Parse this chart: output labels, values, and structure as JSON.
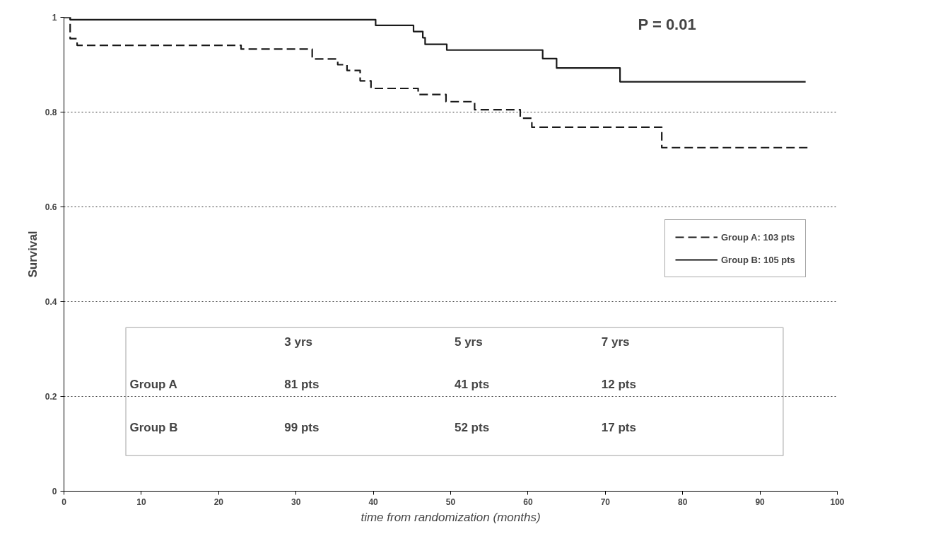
{
  "chart_data": {
    "type": "step",
    "xlabel": "time from randomization (months)",
    "ylabel": "Survival",
    "xlim": [
      0,
      100
    ],
    "ylim": [
      0,
      1
    ],
    "xticks": [
      0,
      10,
      20,
      30,
      40,
      50,
      60,
      70,
      80,
      90,
      100
    ],
    "yticks": [
      0,
      {
        "value": 0.2,
        "label": "0.2"
      },
      {
        "value": 0.4,
        "label": "0.4"
      },
      {
        "value": 0.6,
        "label": "0.6"
      },
      {
        "value": 0.8,
        "label": "0.8"
      },
      1
    ],
    "grid": "y",
    "legend": "right",
    "series": [
      {
        "name": "Group A: 103 pts",
        "color": "#1a1a1a",
        "line_style": "dashed",
        "x": [
          0,
          0.8,
          1.7,
          22.9,
          32.1,
          35.4,
          36.6,
          38.3,
          39.7,
          45.8,
          49.4,
          53.1,
          59.0,
          60.5,
          77.3,
          96.4
        ],
        "values": [
          1,
          0.955,
          0.941,
          0.933,
          0.912,
          0.9,
          0.888,
          0.866,
          0.85,
          0.837,
          0.822,
          0.805,
          0.787,
          0.768,
          0.725,
          0.725
        ]
      },
      {
        "name": "Group B: 105 pts",
        "color": "#1a1a1a",
        "line_style": "solid",
        "x": [
          0,
          0.8,
          40.3,
          45.2,
          46.4,
          46.7,
          49.5,
          61.9,
          63.7,
          71.9,
          95.9
        ],
        "values": [
          1,
          0.995,
          0.983,
          0.97,
          0.957,
          0.943,
          0.931,
          0.913,
          0.893,
          0.864,
          0.864
        ]
      }
    ],
    "annotations": [
      "P = 0.01",
      "3 yrs",
      "5 yrs",
      "7 yrs",
      "Group A",
      "81 pts",
      "41 pts",
      "12 pts",
      "Group B",
      "99 pts",
      "52 pts",
      "17 pts"
    ]
  }
}
